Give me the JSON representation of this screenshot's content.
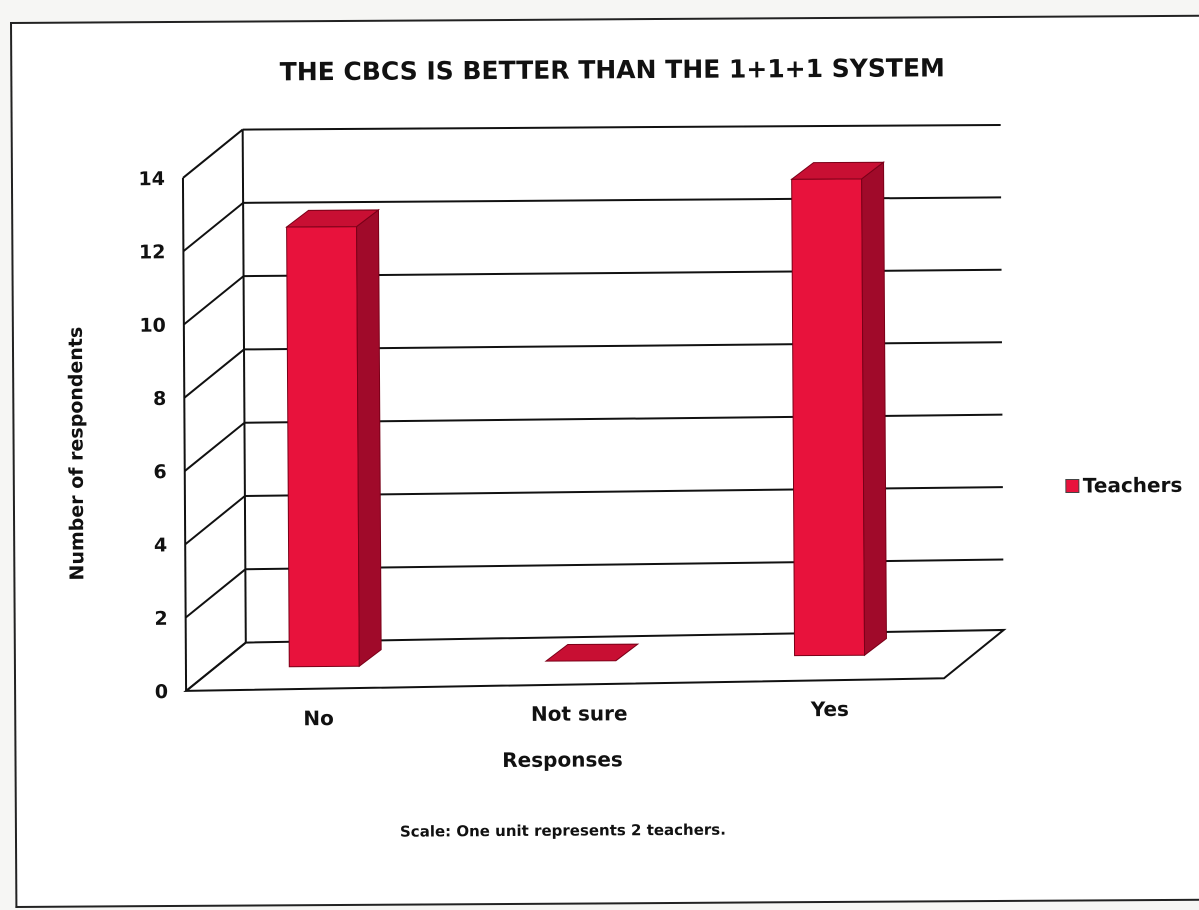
{
  "chart_data": {
    "type": "bar",
    "title": "THE CBCS IS BETTER THAN THE 1+1+1 SYSTEM",
    "xlabel": "Responses",
    "ylabel": "Number of respondents",
    "categories": [
      "No",
      "Not sure",
      "Yes"
    ],
    "series": [
      {
        "name": "Teachers",
        "values": [
          12,
          0,
          13
        ],
        "color": "#e8123c"
      }
    ],
    "ylim": [
      0,
      14
    ],
    "yticks": [
      "0",
      "2",
      "4",
      "6",
      "8",
      "10",
      "12",
      "14"
    ],
    "grid": true,
    "legend": "right",
    "note": "Scale: One unit represents 2 teachers.",
    "style": "3d-column"
  }
}
